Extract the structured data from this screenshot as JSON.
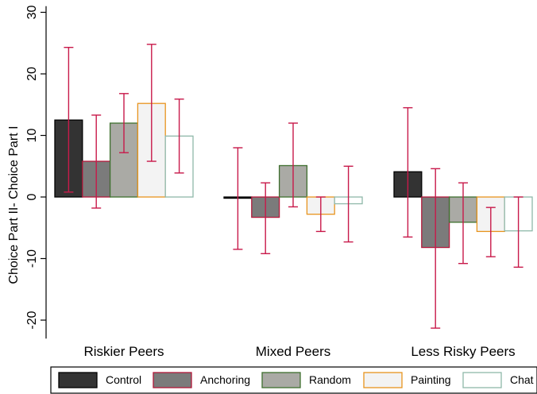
{
  "chart_data": {
    "type": "bar",
    "title": "",
    "xlabel": "",
    "ylabel": "Choice Part II- Choice Part I",
    "ylim": [
      -23,
      31
    ],
    "yticks": [
      30,
      20,
      10,
      0,
      -10,
      -20
    ],
    "grid": false,
    "legend_position": "bottom",
    "categories": [
      "Riskier Peers",
      "Mixed Peers",
      "Less Risky Peers"
    ],
    "series": [
      {
        "name": "Control",
        "values": [
          12.5,
          -0.2,
          4.1
        ],
        "ci_low": [
          0.8,
          -8.5,
          -6.5
        ],
        "ci_high": [
          24.3,
          8.0,
          14.5
        ],
        "fill": "#333333",
        "stroke": "#000000"
      },
      {
        "name": "Anchoring",
        "values": [
          5.8,
          -3.3,
          -8.2
        ],
        "ci_low": [
          -1.8,
          -9.2,
          -21.3
        ],
        "ci_high": [
          13.3,
          2.3,
          4.6
        ],
        "fill": "#7b7b7b",
        "stroke": "#b3183a"
      },
      {
        "name": "Random",
        "values": [
          12.0,
          5.1,
          -4.1
        ],
        "ci_low": [
          7.2,
          -1.6,
          -10.8
        ],
        "ci_high": [
          16.8,
          12.0,
          2.3
        ],
        "fill": "#aaaaa5",
        "stroke": "#3e6f2e"
      },
      {
        "name": "Painting",
        "values": [
          15.2,
          -2.8,
          -5.6
        ],
        "ci_low": [
          5.8,
          -5.6,
          -9.7
        ],
        "ci_high": [
          24.8,
          0.0,
          -1.7
        ],
        "fill": "#f3f3f3",
        "stroke": "#e8941e"
      },
      {
        "name": "Chat",
        "values": [
          9.9,
          -1.1,
          -5.5
        ],
        "ci_low": [
          3.9,
          -7.3,
          -11.4
        ],
        "ci_high": [
          15.9,
          5.0,
          0.0
        ],
        "fill": "#ffffff",
        "stroke": "#8fb8a9"
      }
    ],
    "error_bar_color": "#c8194a"
  }
}
